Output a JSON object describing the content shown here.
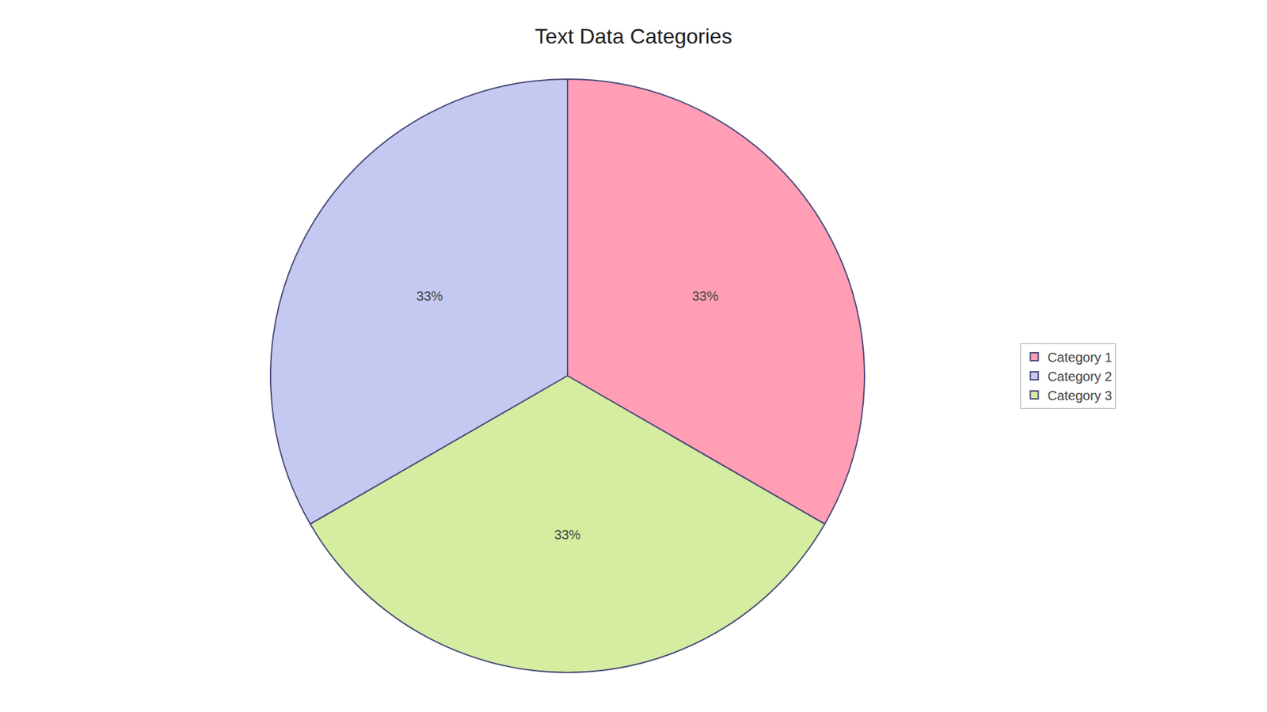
{
  "chart_data": {
    "type": "pie",
    "title": "Text Data Categories",
    "categories": [
      "Category 1",
      "Category 2",
      "Category 3"
    ],
    "values": [
      33.33,
      33.33,
      33.34
    ],
    "value_labels": [
      "33%",
      "33%",
      "33%"
    ],
    "colors": [
      "#FF9EB5",
      "#C5C8F0",
      "#D4EDA0"
    ],
    "data_labels": true,
    "legend": "right"
  }
}
